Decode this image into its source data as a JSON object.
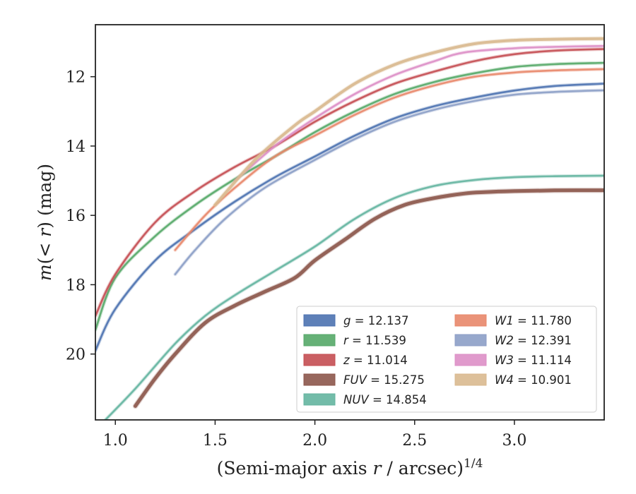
{
  "chart_data": {
    "type": "line",
    "xlabel": "(Semi-major axis r / arcsec)^{1/4}",
    "ylabel": "m(< r) (mag)",
    "xlim": [
      0.9,
      3.45
    ],
    "ylim": [
      21.9,
      10.5
    ],
    "y_inverted": true,
    "x_ticks": [
      1.0,
      1.5,
      2.0,
      2.5,
      3.0
    ],
    "x_tick_labels": [
      "1.0",
      "1.5",
      "2.0",
      "2.5",
      "3.0"
    ],
    "y_ticks": [
      12,
      14,
      16,
      18,
      20
    ],
    "y_tick_labels": [
      "12",
      "14",
      "16",
      "18",
      "20"
    ],
    "grid": false,
    "legend_position": "lower-right",
    "legend_columns": 2,
    "series": [
      {
        "name": "g = 12.137",
        "band": "g",
        "mag": "12.137",
        "color": "#4c72b0",
        "x": [
          0.9,
          1.0,
          1.2,
          1.4,
          1.6,
          1.8,
          2.0,
          2.2,
          2.4,
          2.6,
          2.8,
          3.0,
          3.2,
          3.45
        ],
        "y": [
          19.9,
          18.7,
          17.3,
          16.4,
          15.6,
          14.9,
          14.3,
          13.7,
          13.2,
          12.85,
          12.6,
          12.4,
          12.27,
          12.2
        ]
      },
      {
        "name": "r = 11.539",
        "band": "r",
        "mag": "11.539",
        "color": "#55a868",
        "x": [
          0.9,
          1.0,
          1.2,
          1.4,
          1.6,
          1.8,
          2.0,
          2.2,
          2.4,
          2.6,
          2.8,
          3.0,
          3.2,
          3.45
        ],
        "y": [
          19.3,
          17.8,
          16.6,
          15.7,
          14.95,
          14.3,
          13.6,
          13.0,
          12.5,
          12.15,
          11.9,
          11.72,
          11.64,
          11.6
        ]
      },
      {
        "name": "z = 11.014",
        "band": "z",
        "mag": "11.014",
        "color": "#c44e52",
        "x": [
          0.9,
          1.0,
          1.2,
          1.4,
          1.6,
          1.8,
          2.0,
          2.2,
          2.4,
          2.6,
          2.8,
          3.0,
          3.2,
          3.45
        ],
        "y": [
          18.9,
          17.7,
          16.2,
          15.3,
          14.6,
          14.0,
          13.3,
          12.7,
          12.2,
          11.85,
          11.55,
          11.35,
          11.25,
          11.2
        ]
      },
      {
        "name": "FUV = 15.275",
        "band": "FUV",
        "mag": "15.275",
        "color": "#8c564b",
        "x": [
          1.1,
          1.2,
          1.3,
          1.45,
          1.6,
          1.75,
          1.9,
          2.0,
          2.15,
          2.3,
          2.45,
          2.6,
          2.75,
          2.85,
          3.0,
          3.2,
          3.45
        ],
        "y": [
          21.5,
          20.7,
          20.0,
          19.1,
          18.6,
          18.2,
          17.8,
          17.3,
          16.7,
          16.1,
          15.7,
          15.5,
          15.37,
          15.33,
          15.3,
          15.28,
          15.275
        ]
      },
      {
        "name": "NUV = 14.854",
        "band": "NUV",
        "mag": "14.854",
        "color": "#64b5a0",
        "x": [
          0.95,
          1.1,
          1.3,
          1.45,
          1.6,
          1.8,
          2.0,
          2.2,
          2.4,
          2.6,
          2.8,
          3.0,
          3.2,
          3.45
        ],
        "y": [
          21.9,
          21.0,
          19.7,
          18.9,
          18.3,
          17.6,
          16.9,
          16.1,
          15.5,
          15.15,
          14.98,
          14.9,
          14.87,
          14.854
        ]
      },
      {
        "name": "W1 = 11.780",
        "band": "W1",
        "mag": "11.780",
        "color": "#e8876a",
        "x": [
          1.3,
          1.45,
          1.6,
          1.8,
          2.0,
          2.2,
          2.4,
          2.6,
          2.8,
          3.0,
          3.2,
          3.45
        ],
        "y": [
          17.0,
          16.0,
          15.2,
          14.3,
          13.7,
          13.1,
          12.6,
          12.25,
          12.0,
          11.88,
          11.82,
          11.78
        ]
      },
      {
        "name": "W2 = 12.391",
        "band": "W2",
        "mag": "12.391",
        "color": "#8c9ec6",
        "x": [
          1.3,
          1.4,
          1.55,
          1.75,
          2.0,
          2.2,
          2.4,
          2.6,
          2.8,
          3.0,
          3.2,
          3.45
        ],
        "y": [
          17.7,
          17.0,
          16.1,
          15.2,
          14.4,
          13.8,
          13.3,
          12.95,
          12.7,
          12.52,
          12.44,
          12.391
        ]
      },
      {
        "name": "W3 = 11.114",
        "band": "W3",
        "mag": "11.114",
        "color": "#dd8fc6",
        "x": [
          1.6,
          1.8,
          2.0,
          2.2,
          2.4,
          2.6,
          2.75,
          3.0,
          3.2,
          3.45
        ],
        "y": [
          15.0,
          14.0,
          13.2,
          12.5,
          11.95,
          11.55,
          11.3,
          11.18,
          11.14,
          11.114
        ]
      },
      {
        "name": "W4 = 10.901",
        "band": "W4",
        "mag": "10.901",
        "color": "#d9b98f",
        "x": [
          1.5,
          1.7,
          1.9,
          2.0,
          2.2,
          2.4,
          2.6,
          2.8,
          3.0,
          3.2,
          3.45
        ],
        "y": [
          15.7,
          14.4,
          13.4,
          13.0,
          12.2,
          11.65,
          11.3,
          11.05,
          10.95,
          10.92,
          10.901
        ]
      }
    ]
  }
}
